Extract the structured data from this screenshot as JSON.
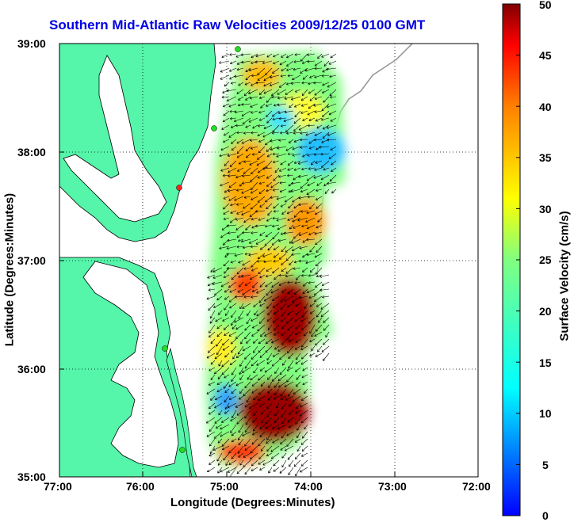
{
  "title": "Southern Mid-Atlantic Raw Velocities 2009/12/25 0100 GMT",
  "x_axis": {
    "label": "Longitude (Degrees:Minutes)",
    "ticks": [
      "77:00",
      "76:00",
      "75:00",
      "74:00",
      "73:00",
      "72:00"
    ]
  },
  "y_axis": {
    "label": "Latitude (Degrees:Minutes)",
    "ticks": [
      "39:00",
      "38:00",
      "37:00",
      "36:00",
      "35:00"
    ]
  },
  "colorbar": {
    "label": "Surface Velocity (cm/s)",
    "ticks": [
      "50",
      "45",
      "40",
      "35",
      "30",
      "25",
      "20",
      "15",
      "10",
      "5",
      "0"
    ],
    "range": [
      0,
      50
    ],
    "colormap": "jet"
  },
  "colors": {
    "title": "#0000e6",
    "land": "#55f5aa",
    "coastline": "#000000",
    "bathymetry_contour": "#9a9a9a",
    "station_marker": "#22dd22",
    "station_marker_highlight": "#ff2222"
  },
  "map": {
    "extent_lon": [
      -77,
      -72
    ],
    "extent_lat": [
      35,
      39
    ],
    "grid": true
  }
}
